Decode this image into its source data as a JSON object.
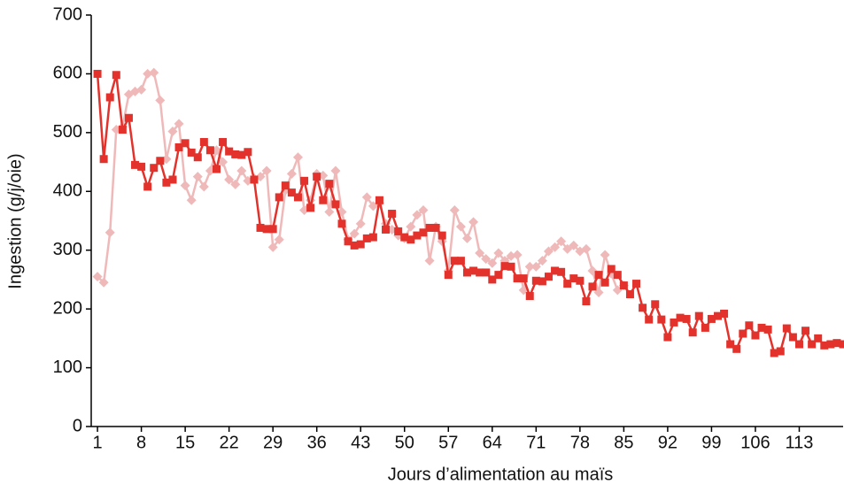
{
  "chart_data": {
    "type": "line",
    "x_label": "Jours d’alimentation au maïs",
    "y_label": "Ingestion (g/j/oie)",
    "x": [
      1,
      2,
      3,
      4,
      5,
      6,
      7,
      8,
      9,
      10,
      11,
      12,
      13,
      14,
      15,
      16,
      17,
      18,
      19,
      20,
      21,
      22,
      23,
      24,
      25,
      26,
      27,
      28,
      29,
      30,
      31,
      32,
      33,
      34,
      35,
      36,
      37,
      38,
      39,
      40,
      41,
      42,
      43,
      44,
      45,
      46,
      47,
      48,
      49,
      50,
      51,
      52,
      53,
      54,
      55,
      56,
      57,
      58,
      59,
      60,
      61,
      62,
      63,
      64,
      65,
      66,
      67,
      68,
      69,
      70,
      71,
      72,
      73,
      74,
      75,
      76,
      77,
      78,
      79,
      80,
      81,
      82,
      83,
      84,
      85,
      86,
      87,
      88,
      89,
      90,
      91,
      92,
      93,
      94,
      95,
      96,
      97,
      98,
      99,
      100,
      101,
      102,
      103,
      104,
      105,
      106,
      107,
      108,
      109,
      110,
      111,
      112,
      113,
      114,
      115,
      116,
      117,
      118,
      119,
      120
    ],
    "series": [
      {
        "color": "#f0b9b9",
        "marker": "diamond",
        "values": [
          255,
          245,
          330,
          505,
          510,
          565,
          570,
          573,
          600,
          602,
          555,
          455,
          502,
          515,
          410,
          385,
          425,
          408,
          435,
          470,
          450,
          420,
          412,
          435,
          418,
          422,
          425,
          435,
          305,
          318,
          402,
          430,
          458,
          368,
          385,
          430,
          427,
          365,
          435,
          365,
          318,
          328,
          345,
          390,
          375,
          380,
          345,
          335,
          325,
          320,
          340,
          360,
          368,
          282,
          340,
          315,
          265,
          368,
          340,
          320,
          348,
          295,
          285,
          278,
          295,
          282,
          290,
          292,
          232,
          272,
          272,
          282,
          298,
          305,
          315,
          302,
          308,
          298,
          302,
          265,
          228,
          292,
          260,
          232,
          240,
          null,
          null,
          null,
          null,
          null,
          null,
          null,
          null,
          null,
          null,
          null,
          null,
          null,
          null,
          null,
          null,
          null,
          null,
          null,
          null,
          null,
          null,
          null,
          null,
          null,
          null,
          null,
          null,
          null,
          null,
          null,
          null,
          null,
          null,
          null
        ]
      },
      {
        "color": "#e3322b",
        "marker": "square",
        "values": [
          600,
          455,
          560,
          598,
          505,
          525,
          445,
          442,
          408,
          440,
          452,
          415,
          420,
          475,
          482,
          466,
          458,
          484,
          470,
          438,
          484,
          468,
          463,
          462,
          467,
          420,
          338,
          336,
          336,
          390,
          410,
          398,
          390,
          418,
          372,
          425,
          385,
          413,
          378,
          345,
          315,
          308,
          310,
          320,
          322,
          385,
          335,
          362,
          332,
          322,
          318,
          325,
          330,
          338,
          338,
          325,
          258,
          282,
          282,
          262,
          265,
          262,
          262,
          250,
          258,
          273,
          272,
          252,
          252,
          222,
          248,
          247,
          255,
          265,
          263,
          243,
          252,
          248,
          213,
          238,
          258,
          245,
          268,
          258,
          240,
          225,
          243,
          202,
          182,
          208,
          182,
          152,
          177,
          185,
          183,
          160,
          188,
          168,
          183,
          188,
          192,
          140,
          132,
          158,
          172,
          155,
          168,
          165,
          125,
          128,
          167,
          152,
          140,
          163,
          140,
          150,
          138,
          140,
          142,
          140
        ]
      }
    ],
    "xlim": [
      0,
      120
    ],
    "xticks": [
      1,
      8,
      15,
      22,
      29,
      36,
      43,
      50,
      57,
      64,
      71,
      78,
      85,
      92,
      99,
      106,
      113
    ],
    "ylim": [
      0,
      700
    ],
    "yticks": [
      0,
      100,
      200,
      300,
      400,
      500,
      600,
      700
    ],
    "grid": false
  }
}
